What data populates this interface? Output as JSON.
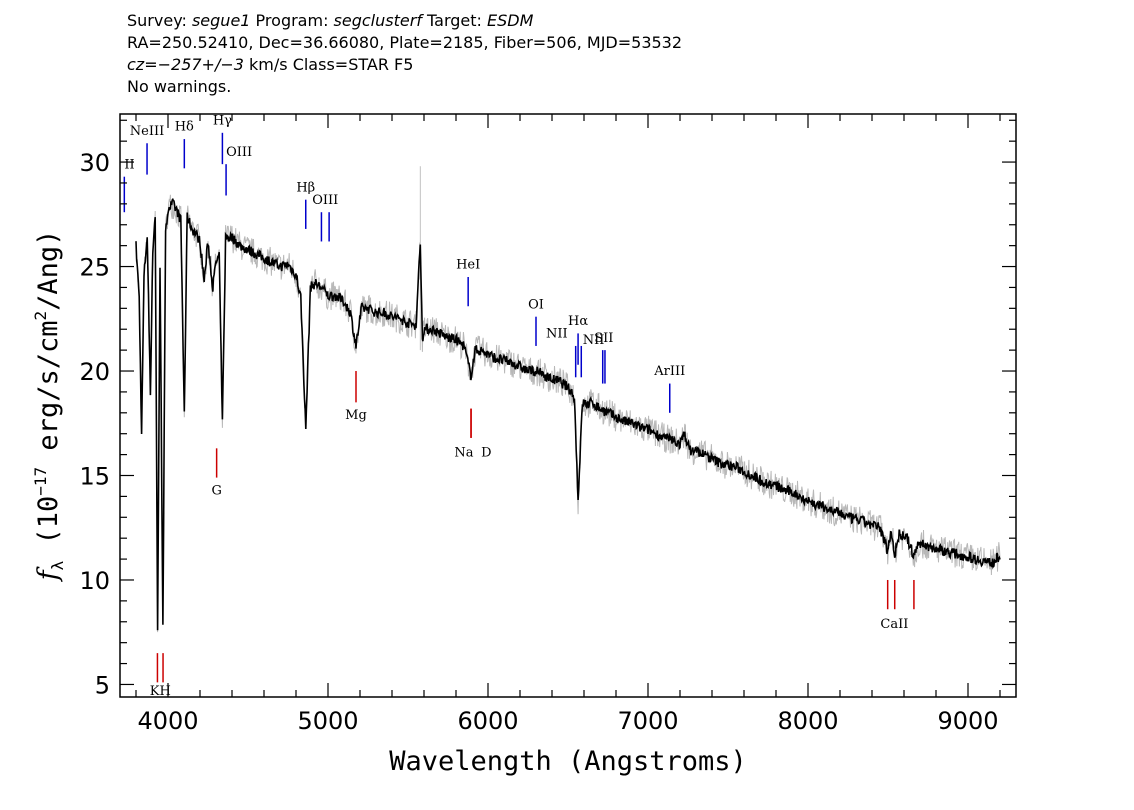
{
  "header": {
    "line1": {
      "survey_label": "Survey: ",
      "survey": "segue1",
      "program_label": " Program: ",
      "program": "segclusterf",
      "target_label": " Target: ",
      "target": "ESDM"
    },
    "line2": "RA=250.52410, Dec=36.66080, Plate=2185, Fiber=506, MJD=53532",
    "line3": {
      "cz": "cz=−257+/−3",
      "rest": " km/s Class=STAR F5"
    },
    "line4": "No warnings."
  },
  "chart_data": {
    "type": "line",
    "xlabel": "Wavelength (Angstroms)",
    "ylabel": "f",
    "ylabel_sub": "λ",
    "ylabel_rest": " (10",
    "ylabel_exp": "−17",
    "ylabel_units": " erg/s/cm",
    "ylabel_exp2": "2",
    "ylabel_end": "/Ang)",
    "xlim": [
      3700,
      9300
    ],
    "ylim": [
      4.4,
      32.3
    ],
    "x_ticks": [
      4000,
      5000,
      6000,
      7000,
      8000,
      9000
    ],
    "x_tick_labels": [
      "4000",
      "5000",
      "6000",
      "7000",
      "8000",
      "9000"
    ],
    "y_ticks": [
      5,
      10,
      15,
      20,
      25,
      30
    ],
    "y_tick_labels": [
      "5",
      "10",
      "15",
      "20",
      "25",
      "30"
    ],
    "series": [
      {
        "role": "flux",
        "color": "#000000",
        "points": [
          [
            3800,
            26.0
          ],
          [
            3820,
            23.5
          ],
          [
            3835,
            17.0
          ],
          [
            3850,
            24.5
          ],
          [
            3870,
            26.5
          ],
          [
            3890,
            19.0
          ],
          [
            3905,
            25.8
          ],
          [
            3920,
            27.5
          ],
          [
            3935,
            7.5
          ],
          [
            3950,
            25.0
          ],
          [
            3968,
            8.0
          ],
          [
            3985,
            26.5
          ],
          [
            4000,
            27.8
          ],
          [
            4030,
            28.0
          ],
          [
            4060,
            27.6
          ],
          [
            4080,
            27.2
          ],
          [
            4102,
            18.0
          ],
          [
            4120,
            27.4
          ],
          [
            4150,
            26.8
          ],
          [
            4180,
            26.5
          ],
          [
            4200,
            26.2
          ],
          [
            4226,
            24.3
          ],
          [
            4250,
            26.2
          ],
          [
            4280,
            24.0
          ],
          [
            4300,
            25.2
          ],
          [
            4320,
            25.5
          ],
          [
            4340,
            17.5
          ],
          [
            4360,
            26.4
          ],
          [
            4400,
            26.4
          ],
          [
            4450,
            26.0
          ],
          [
            4500,
            25.8
          ],
          [
            4550,
            25.6
          ],
          [
            4600,
            25.4
          ],
          [
            4650,
            25.2
          ],
          [
            4700,
            25.0
          ],
          [
            4750,
            25.1
          ],
          [
            4800,
            24.6
          ],
          [
            4830,
            23.5
          ],
          [
            4861,
            17.2
          ],
          [
            4890,
            24.0
          ],
          [
            4920,
            24.2
          ],
          [
            4960,
            24.0
          ],
          [
            5000,
            23.6
          ],
          [
            5050,
            23.6
          ],
          [
            5100,
            23.3
          ],
          [
            5140,
            22.8
          ],
          [
            5175,
            21.2
          ],
          [
            5210,
            23.0
          ],
          [
            5250,
            23.0
          ],
          [
            5300,
            22.8
          ],
          [
            5350,
            22.8
          ],
          [
            5400,
            22.6
          ],
          [
            5450,
            22.5
          ],
          [
            5500,
            22.3
          ],
          [
            5550,
            22.2
          ],
          [
            5577,
            26.2
          ],
          [
            5590,
            21.5
          ],
          [
            5600,
            22.0
          ],
          [
            5650,
            22.0
          ],
          [
            5700,
            21.8
          ],
          [
            5750,
            21.6
          ],
          [
            5800,
            21.5
          ],
          [
            5850,
            21.2
          ],
          [
            5893,
            19.8
          ],
          [
            5920,
            21.0
          ],
          [
            5950,
            21.0
          ],
          [
            6000,
            20.8
          ],
          [
            6050,
            20.6
          ],
          [
            6100,
            20.5
          ],
          [
            6150,
            20.4
          ],
          [
            6200,
            20.2
          ],
          [
            6250,
            20.0
          ],
          [
            6300,
            20.0
          ],
          [
            6350,
            19.8
          ],
          [
            6400,
            19.6
          ],
          [
            6450,
            19.5
          ],
          [
            6500,
            19.2
          ],
          [
            6540,
            18.8
          ],
          [
            6563,
            13.8
          ],
          [
            6590,
            18.5
          ],
          [
            6620,
            18.4
          ],
          [
            6650,
            18.5
          ],
          [
            6700,
            18.2
          ],
          [
            6750,
            18.0
          ],
          [
            6800,
            17.8
          ],
          [
            6850,
            17.6
          ],
          [
            6900,
            17.5
          ],
          [
            6950,
            17.3
          ],
          [
            7000,
            17.2
          ],
          [
            7050,
            17.0
          ],
          [
            7100,
            16.8
          ],
          [
            7150,
            16.7
          ],
          [
            7200,
            16.5
          ],
          [
            7230,
            17.0
          ],
          [
            7260,
            16.2
          ],
          [
            7300,
            16.2
          ],
          [
            7350,
            16.0
          ],
          [
            7400,
            15.8
          ],
          [
            7450,
            15.6
          ],
          [
            7500,
            15.5
          ],
          [
            7550,
            15.4
          ],
          [
            7600,
            15.2
          ],
          [
            7650,
            15.0
          ],
          [
            7700,
            14.8
          ],
          [
            7750,
            14.6
          ],
          [
            7800,
            14.5
          ],
          [
            7850,
            14.3
          ],
          [
            7900,
            14.2
          ],
          [
            7950,
            14.0
          ],
          [
            8000,
            13.8
          ],
          [
            8050,
            13.6
          ],
          [
            8100,
            13.5
          ],
          [
            8150,
            13.3
          ],
          [
            8200,
            13.2
          ],
          [
            8250,
            13.0
          ],
          [
            8300,
            12.9
          ],
          [
            8350,
            12.8
          ],
          [
            8400,
            12.6
          ],
          [
            8450,
            12.5
          ],
          [
            8498,
            11.4
          ],
          [
            8520,
            12.4
          ],
          [
            8542,
            11.2
          ],
          [
            8570,
            12.2
          ],
          [
            8620,
            12.0
          ],
          [
            8662,
            11.1
          ],
          [
            8690,
            11.8
          ],
          [
            8750,
            11.6
          ],
          [
            8800,
            11.5
          ],
          [
            8850,
            11.4
          ],
          [
            8900,
            11.3
          ],
          [
            8950,
            11.2
          ],
          [
            9000,
            11.1
          ],
          [
            9050,
            11.0
          ],
          [
            9100,
            10.9
          ],
          [
            9150,
            10.8
          ],
          [
            9200,
            11.2
          ]
        ]
      }
    ],
    "emission_lines": [
      {
        "label": "OII",
        "wavelength": 3727,
        "top": 29.3,
        "bottom": 27.6,
        "color": "#0000cc"
      },
      {
        "label": "NeIII",
        "wavelength": 3869,
        "top": 30.9,
        "bottom": 29.4,
        "color": "#0000cc"
      },
      {
        "label": "Hδ",
        "wavelength": 4102,
        "top": 31.1,
        "bottom": 29.7,
        "color": "#0000cc"
      },
      {
        "label": "Hγ",
        "wavelength": 4340,
        "top": 31.4,
        "bottom": 29.9,
        "color": "#0000cc"
      },
      {
        "label": "OIII",
        "wavelength": 4363,
        "top": 29.9,
        "bottom": 28.4,
        "color": "#0000cc"
      },
      {
        "label": "Hβ",
        "wavelength": 4861,
        "top": 28.2,
        "bottom": 26.8,
        "color": "#0000cc"
      },
      {
        "label": "OIII",
        "wavelength": 4959,
        "top": 27.6,
        "bottom": 26.2,
        "color": "#0000cc"
      },
      {
        "label": "OIII",
        "wavelength": 5007,
        "top": 27.6,
        "bottom": 26.2,
        "color": "#0000cc"
      },
      {
        "label": "HeI",
        "wavelength": 5876,
        "top": 24.5,
        "bottom": 23.1,
        "color": "#0000cc"
      },
      {
        "label": "OI",
        "wavelength": 6300,
        "top": 22.6,
        "bottom": 21.2,
        "color": "#0000cc"
      },
      {
        "label": "NII",
        "wavelength": 6548,
        "top": 21.2,
        "bottom": 19.7,
        "color": "#0000cc"
      },
      {
        "label": "Hα",
        "wavelength": 6563,
        "top": 21.8,
        "bottom": 20.3,
        "color": "#0000cc"
      },
      {
        "label": "NII",
        "wavelength": 6583,
        "top": 21.2,
        "bottom": 19.7,
        "color": "#0000cc"
      },
      {
        "label": "SII",
        "wavelength": 6717,
        "top": 21.0,
        "bottom": 19.4,
        "color": "#0000cc"
      },
      {
        "label": "SII",
        "wavelength": 6731,
        "top": 21.0,
        "bottom": 19.4,
        "color": "#0000cc"
      },
      {
        "label": "ArIII",
        "wavelength": 7136,
        "top": 19.4,
        "bottom": 18.0,
        "color": "#0000cc"
      }
    ],
    "absorption_lines": [
      {
        "label": "K",
        "wavelength": 3934,
        "top": 6.5,
        "bottom": 5.1,
        "color": "#cc0000"
      },
      {
        "label": "H",
        "wavelength": 3969,
        "top": 6.5,
        "bottom": 5.1,
        "color": "#cc0000"
      },
      {
        "label": "G",
        "wavelength": 4304,
        "top": 16.3,
        "bottom": 14.9,
        "color": "#cc0000"
      },
      {
        "label": "Mg",
        "wavelength": 5175,
        "top": 20.0,
        "bottom": 18.5,
        "color": "#cc0000"
      },
      {
        "label": "Na",
        "wavelength": 5894,
        "top": 18.2,
        "bottom": 16.8,
        "color": "#cc0000"
      },
      {
        "label": "D",
        "wavelength": 5894,
        "top": 18.2,
        "bottom": 16.8,
        "color": "#cc0000"
      },
      {
        "label": "CaII",
        "wavelength": 8498,
        "top": 10.0,
        "bottom": 8.6,
        "color": "#cc0000"
      },
      {
        "label": "CaII",
        "wavelength": 8542,
        "top": 10.0,
        "bottom": 8.6,
        "color": "#cc0000"
      },
      {
        "label": "CaII",
        "wavelength": 8662,
        "top": 10.0,
        "bottom": 8.6,
        "color": "#cc0000"
      }
    ],
    "line_label_texts": [
      {
        "text": "II",
        "wavelength": 3727,
        "y": 29.7,
        "anchor": "start"
      },
      {
        "text": "NeIII",
        "wavelength": 3869,
        "y": 31.3,
        "anchor": "middle"
      },
      {
        "text": "Hδ",
        "wavelength": 4102,
        "y": 31.5,
        "anchor": "middle"
      },
      {
        "text": "Hγ",
        "wavelength": 4340,
        "y": 31.8,
        "anchor": "middle"
      },
      {
        "text": "OIII",
        "wavelength": 4363,
        "y": 30.3,
        "anchor": "start"
      },
      {
        "text": "Hβ",
        "wavelength": 4861,
        "y": 28.6,
        "anchor": "middle"
      },
      {
        "text": "OIII",
        "wavelength": 4983,
        "y": 28.0,
        "anchor": "middle"
      },
      {
        "text": "HeI",
        "wavelength": 5876,
        "y": 24.9,
        "anchor": "middle"
      },
      {
        "text": "OI",
        "wavelength": 6300,
        "y": 23.0,
        "anchor": "middle"
      },
      {
        "text": "NII",
        "wavelength": 6430,
        "y": 21.6,
        "anchor": "middle"
      },
      {
        "text": "Hα",
        "wavelength": 6563,
        "y": 22.2,
        "anchor": "middle"
      },
      {
        "text": "NII",
        "wavelength": 6660,
        "y": 21.3,
        "anchor": "middle"
      },
      {
        "text": "SII",
        "wavelength": 6724,
        "y": 21.4,
        "anchor": "middle"
      },
      {
        "text": "ArIII",
        "wavelength": 7136,
        "y": 19.8,
        "anchor": "middle"
      },
      {
        "text": "KH",
        "wavelength": 3952,
        "y": 4.5,
        "anchor": "middle"
      },
      {
        "text": "G",
        "wavelength": 4304,
        "y": 14.1,
        "anchor": "middle"
      },
      {
        "text": "Mg",
        "wavelength": 5175,
        "y": 17.7,
        "anchor": "middle"
      },
      {
        "text": "Na",
        "wavelength": 5850,
        "y": 15.9,
        "anchor": "middle"
      },
      {
        "text": "D",
        "wavelength": 5990,
        "y": 15.9,
        "anchor": "middle"
      },
      {
        "text": "CaII",
        "wavelength": 8540,
        "y": 7.7,
        "anchor": "middle"
      }
    ]
  }
}
